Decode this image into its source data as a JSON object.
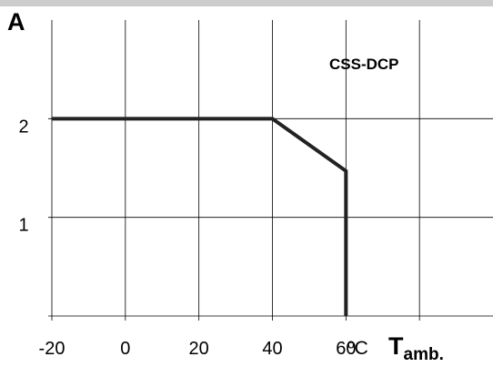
{
  "chart_data": {
    "type": "line",
    "annotation": "CSS-DCP",
    "y_unit_label": "A",
    "x_unit_label": "ºC",
    "x_axis_title": "T",
    "x_axis_title_sub": "amb.",
    "x_ticks": [
      -20,
      0,
      20,
      40,
      60
    ],
    "x_tick_labels": [
      "-20",
      "0",
      "20",
      "40",
      "60"
    ],
    "x_gridlines": [
      -20,
      0,
      20,
      40,
      60,
      80
    ],
    "y_ticks": [
      1,
      2
    ],
    "y_tick_labels": [
      "1",
      "2"
    ],
    "y_gridlines": [
      0,
      1,
      2
    ],
    "xlim": [
      -20,
      100
    ],
    "ylim": [
      0,
      3.0
    ],
    "grid": true,
    "series": [
      {
        "x": [
          -20,
          40,
          60,
          60
        ],
        "y": [
          2.0,
          2.0,
          1.47,
          0
        ]
      }
    ],
    "colors": {
      "line": "#222222",
      "grid": "#000000",
      "top_band": "#cccccc"
    }
  }
}
